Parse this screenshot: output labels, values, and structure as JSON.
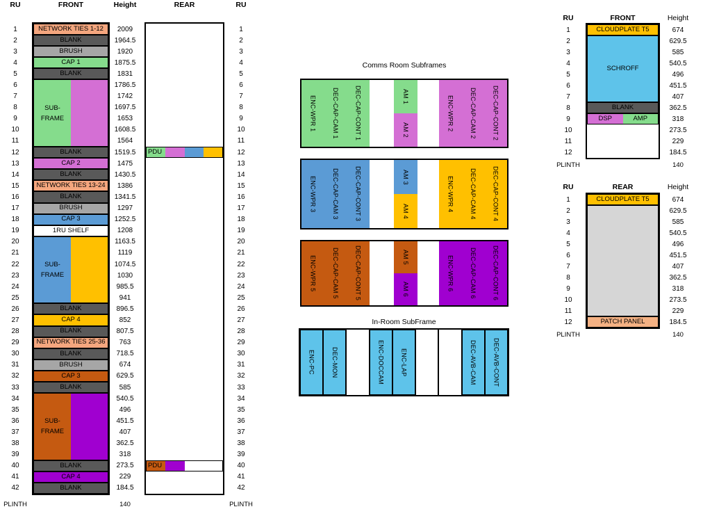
{
  "palette": {
    "blank": "#595959",
    "brush": "#A6A6A6",
    "salmon": "#F4A67E",
    "patch": "#F4B183",
    "green": "#85DC8C",
    "orchid": "#D46FD4",
    "blue": "#5B9BD5",
    "gold": "#FFC000",
    "chocolate": "#C55A11",
    "purple": "#A000D0",
    "sky": "#5EC3EA",
    "gray": "#D6D6D6",
    "white": "#FFFFFF"
  },
  "left_rack": {
    "ru_header": "RU",
    "front_header": "FRONT",
    "height_header": "Height",
    "rear_header": "REAR",
    "rear_ru_header": "RU",
    "rows": 42,
    "plinth_label": "PLINTH",
    "plinth_height": "140",
    "rear_plinth_label": "PLINTH",
    "heights": [
      "2009",
      "1964.5",
      "1920",
      "1875.5",
      "1831",
      "1786.5",
      "1742",
      "1697.5",
      "1653",
      "1608.5",
      "1564",
      "1519.5",
      "1475",
      "1430.5",
      "1386",
      "1341.5",
      "1297",
      "1252.5",
      "1208",
      "1163.5",
      "1119",
      "1074.5",
      "1030",
      "985.5",
      "941",
      "896.5",
      "852",
      "807.5",
      "763",
      "718.5",
      "674",
      "629.5",
      "585",
      "540.5",
      "496",
      "451.5",
      "407",
      "362.5",
      "318",
      "273.5",
      "229",
      "184.5"
    ],
    "front_cells": [
      {
        "row": 1,
        "span": 1,
        "label": "NETWORK TIES 1-12",
        "color": "salmon"
      },
      {
        "row": 2,
        "span": 1,
        "label": "BLANK",
        "color": "blank"
      },
      {
        "row": 3,
        "span": 1,
        "label": "BRUSH",
        "color": "brush"
      },
      {
        "row": 4,
        "span": 1,
        "label": "CAP 1",
        "color": "green"
      },
      {
        "row": 5,
        "span": 1,
        "label": "BLANK",
        "color": "blank"
      },
      {
        "row": 6,
        "span": 6,
        "type": "split",
        "halves": [
          {
            "color": "green",
            "label": "SUB-\nFRAME"
          },
          {
            "color": "orchid",
            "label": ""
          }
        ]
      },
      {
        "row": 12,
        "span": 1,
        "label": "BLANK",
        "color": "blank"
      },
      {
        "row": 13,
        "span": 1,
        "label": "CAP 2",
        "color": "orchid"
      },
      {
        "row": 14,
        "span": 1,
        "label": "BLANK",
        "color": "blank"
      },
      {
        "row": 15,
        "span": 1,
        "label": "NETWORK TIES 13-24",
        "color": "salmon"
      },
      {
        "row": 16,
        "span": 1,
        "label": "BLANK",
        "color": "blank"
      },
      {
        "row": 17,
        "span": 1,
        "label": "BRUSH",
        "color": "brush"
      },
      {
        "row": 18,
        "span": 1,
        "label": "CAP 3",
        "color": "blue"
      },
      {
        "row": 19,
        "span": 1,
        "label": "1RU SHELF",
        "color": "white"
      },
      {
        "row": 20,
        "span": 6,
        "type": "split",
        "halves": [
          {
            "color": "blue",
            "label": "SUB-\nFRAME"
          },
          {
            "color": "gold",
            "label": ""
          }
        ]
      },
      {
        "row": 26,
        "span": 1,
        "label": "BLANK",
        "color": "blank"
      },
      {
        "row": 27,
        "span": 1,
        "label": "CAP 4",
        "color": "gold"
      },
      {
        "row": 28,
        "span": 1,
        "label": "BLANK",
        "color": "blank"
      },
      {
        "row": 29,
        "span": 1,
        "label": "NETWORK TIES 25-36",
        "color": "salmon"
      },
      {
        "row": 30,
        "span": 1,
        "label": "BLANK",
        "color": "blank"
      },
      {
        "row": 31,
        "span": 1,
        "label": "BRUSH",
        "color": "brush"
      },
      {
        "row": 32,
        "span": 1,
        "label": "CAP 3",
        "color": "chocolate"
      },
      {
        "row": 33,
        "span": 1,
        "label": "BLANK",
        "color": "blank"
      },
      {
        "row": 34,
        "span": 6,
        "type": "split",
        "halves": [
          {
            "color": "chocolate",
            "label": "SUB-\nFRAME"
          },
          {
            "color": "purple",
            "label": ""
          }
        ]
      },
      {
        "row": 40,
        "span": 1,
        "label": "BLANK",
        "color": "blank"
      },
      {
        "row": 41,
        "span": 1,
        "label": "CAP 4",
        "color": "purple"
      },
      {
        "row": 42,
        "span": 1,
        "label": "BLANK",
        "color": "blank"
      }
    ],
    "rear_cells": [
      {
        "row": 12,
        "span": 1,
        "type": "pdu",
        "segments": [
          {
            "color": "green",
            "label": "PDU"
          },
          {
            "color": "orchid",
            "label": ""
          },
          {
            "color": "blue",
            "label": ""
          },
          {
            "color": "gold",
            "label": ""
          }
        ]
      },
      {
        "row": 40,
        "span": 1,
        "type": "pdu",
        "segments": [
          {
            "color": "chocolate",
            "label": "PDU"
          },
          {
            "color": "purple",
            "label": ""
          }
        ]
      }
    ]
  },
  "comms": {
    "title": "Comms Room Subframes",
    "blocks": [
      {
        "colorA": "green",
        "colorB": "orchid",
        "labelsA": [
          "ENC-WPR 1",
          "DEC-CAP-CAM 1",
          "DEC-CAP-CONT 1"
        ],
        "am_top": {
          "label": "AM 1",
          "color": "green"
        },
        "am_bottom": {
          "label": "AM 2",
          "color": "orchid"
        },
        "labelsB": [
          "ENC-WPR 2",
          "DEC-CAP-CAM 2",
          "DEC-CAP-CONT 2"
        ]
      },
      {
        "colorA": "blue",
        "colorB": "gold",
        "labelsA": [
          "ENC-WPR 3",
          "DEC-CAP-CAM 3",
          "DEC-CAP-CONT 3"
        ],
        "am_top": {
          "label": "AM 3",
          "color": "blue"
        },
        "am_bottom": {
          "label": "AM 4",
          "color": "gold"
        },
        "labelsB": [
          "ENC-WPR 4",
          "DEC-CAP-CAM 4",
          "DEC-CAP-CONT 4"
        ]
      },
      {
        "colorA": "chocolate",
        "colorB": "purple",
        "labelsA": [
          "ENC-WPR 5",
          "DEC-CAP-CAM 5",
          "DEC-CAP-CONT 5"
        ],
        "am_top": {
          "label": "AM 5",
          "color": "chocolate"
        },
        "am_bottom": {
          "label": "AM 6",
          "color": "purple"
        },
        "labelsB": [
          "ENC-WPR 6",
          "DEC-CAP-CAM 6",
          "DEC-CAP-CONT 6"
        ]
      }
    ]
  },
  "inroom": {
    "title": "In-Room SubFrame",
    "cells": [
      {
        "label": "ENC-PC",
        "color": "sky"
      },
      {
        "label": "DEC-MON",
        "color": "sky"
      },
      {
        "label": "",
        "color": "white"
      },
      {
        "label": "ENC-DOCCAM",
        "color": "sky"
      },
      {
        "label": "ENC-LAP",
        "color": "sky"
      },
      {
        "label": "",
        "color": "white"
      },
      {
        "label": "",
        "color": "white"
      },
      {
        "label": "DEC-AVB-CAM",
        "color": "sky"
      },
      {
        "label": "DEC-AVB-CONT",
        "color": "sky"
      }
    ]
  },
  "right_front": {
    "ru_header": "RU",
    "title": "FRONT",
    "height_header": "Height",
    "rows": 12,
    "plinth_label": "PLINTH",
    "plinth_height": "140",
    "heights": [
      "674",
      "629.5",
      "585",
      "540.5",
      "496",
      "451.5",
      "407",
      "362.5",
      "318",
      "273.5",
      "229",
      "184.5"
    ],
    "cells": [
      {
        "row": 1,
        "span": 1,
        "label": "CLOUDPLATE T5",
        "color": "gold"
      },
      {
        "row": 2,
        "span": 6,
        "label": "SCHROFF",
        "color": "sky"
      },
      {
        "row": 8,
        "span": 1,
        "label": "BLANK",
        "color": "blank"
      },
      {
        "row": 9,
        "span": 1,
        "type": "split",
        "halves": [
          {
            "color": "orchid",
            "label": "DSP"
          },
          {
            "color": "green",
            "label": "AMP"
          }
        ]
      }
    ]
  },
  "right_rear": {
    "ru_header": "RU",
    "title": "REAR",
    "height_header": "Height",
    "rows": 12,
    "plinth_label": "PLINTH",
    "plinth_height": "140",
    "heights": [
      "674",
      "629.5",
      "585",
      "540.5",
      "496",
      "451.5",
      "407",
      "362.5",
      "318",
      "273.5",
      "229",
      "184.5"
    ],
    "cells": [
      {
        "row": 1,
        "span": 1,
        "label": "CLOUDPLATE T5",
        "color": "gold"
      },
      {
        "row": 2,
        "span": 10,
        "label": "",
        "color": "gray"
      },
      {
        "row": 12,
        "span": 1,
        "label": "PATCH PANEL",
        "color": "patch"
      }
    ]
  }
}
